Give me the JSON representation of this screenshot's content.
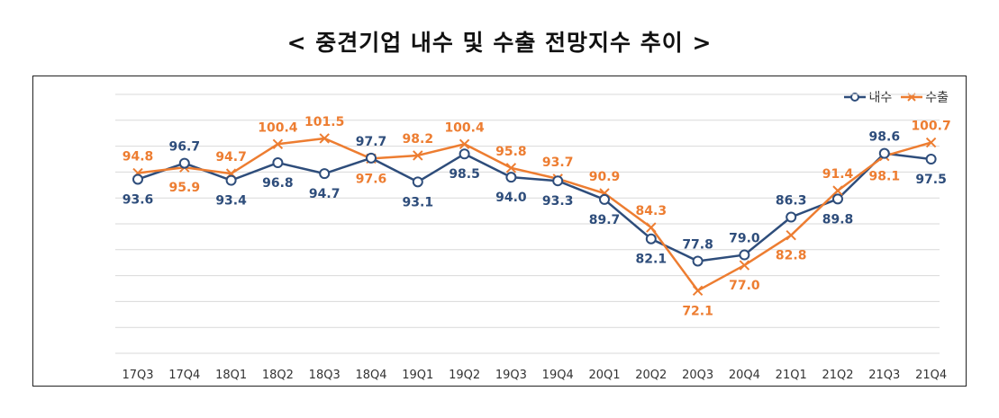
{
  "title": "< 중견기업 내수 및 수출 전망지수 추이 >",
  "colors": {
    "domestic": "#2e4d7b",
    "export": "#ed7d31",
    "grid": "#d9d9d9"
  },
  "chart_data": {
    "type": "line",
    "categories": [
      "17Q3",
      "17Q4",
      "18Q1",
      "18Q2",
      "18Q3",
      "18Q4",
      "19Q1",
      "19Q2",
      "19Q3",
      "19Q4",
      "20Q1",
      "20Q2",
      "20Q3",
      "20Q4",
      "21Q1",
      "21Q2",
      "21Q3",
      "21Q4"
    ],
    "ylim": [
      60,
      110
    ],
    "grid": true,
    "legend": "top-right",
    "series": [
      {
        "name": "내수",
        "marker": "circle",
        "values": [
          93.6,
          96.7,
          93.4,
          96.8,
          94.7,
          97.7,
          93.1,
          98.5,
          94.0,
          93.3,
          89.7,
          82.1,
          77.8,
          79.0,
          86.3,
          89.8,
          98.6,
          97.5
        ],
        "labels": [
          "93.6",
          "96.7",
          "93.4",
          "96.8",
          "94.7",
          "97.7",
          "93.1",
          "98.5",
          "94.0",
          "93.3",
          "89.7",
          "82.1",
          "77.8",
          "79.0",
          "86.3",
          "89.8",
          "98.6",
          "97.5"
        ]
      },
      {
        "name": "수출",
        "marker": "x",
        "values": [
          94.8,
          95.9,
          94.7,
          100.4,
          101.5,
          97.6,
          98.2,
          100.4,
          95.8,
          93.7,
          90.9,
          84.3,
          72.1,
          77.0,
          82.8,
          91.4,
          98.1,
          100.7
        ],
        "labels": [
          "94.8",
          "95.9",
          "94.7",
          "100.4",
          "101.5",
          "97.6",
          "98.2",
          "100.4",
          "95.8",
          "93.7",
          "90.9",
          "84.3",
          "72.1",
          "77.0",
          "82.8",
          "91.4",
          "98.1",
          "100.7"
        ]
      }
    ]
  }
}
